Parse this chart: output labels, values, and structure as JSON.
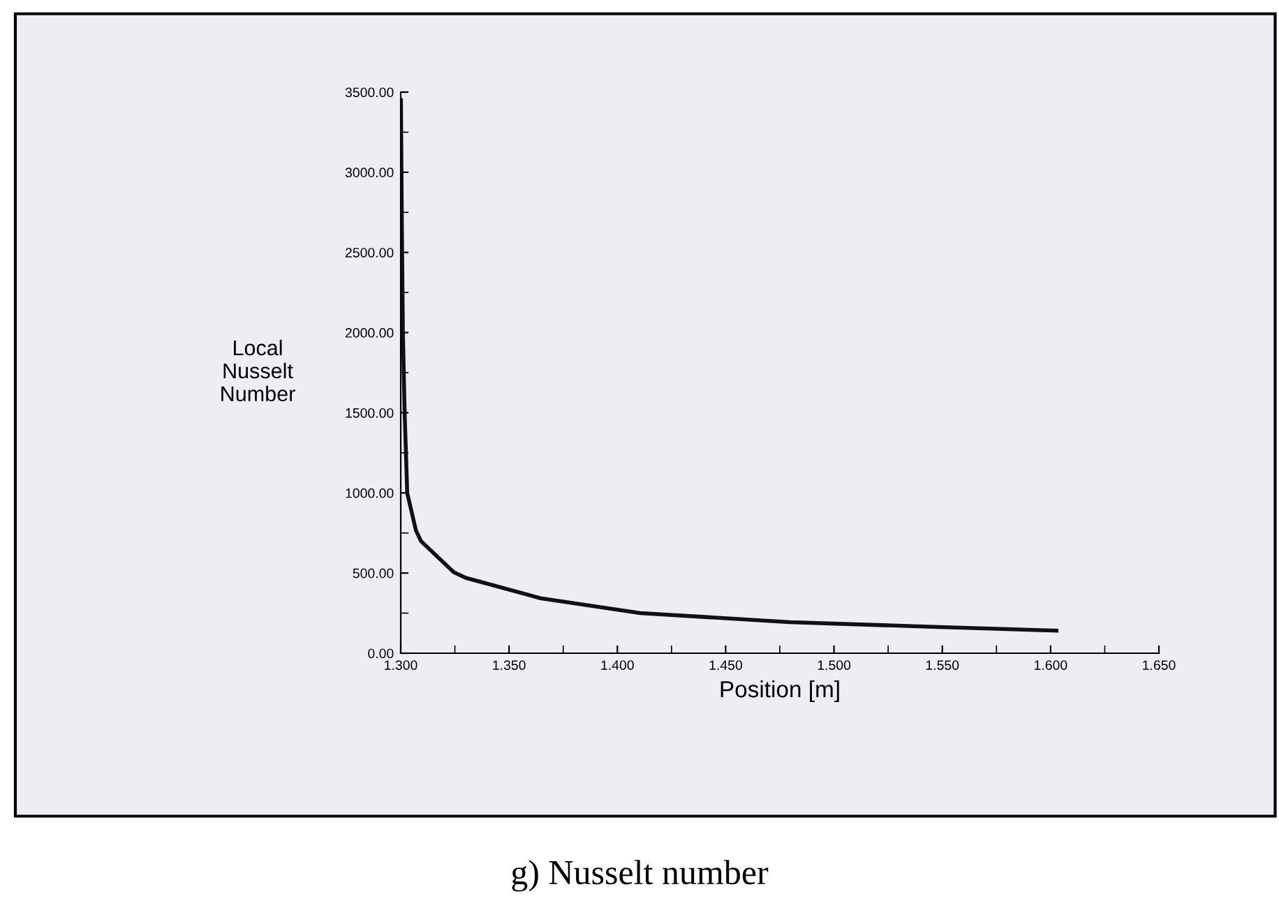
{
  "chart_data": {
    "type": "line",
    "xlabel": "Position [m]",
    "ylabel": "Local\nNusselt\nNumber",
    "annotations": [
      "g) Nusselt number"
    ],
    "x": [
      1.3001,
      1.3005,
      1.301,
      1.3018,
      1.303,
      1.307,
      1.3093,
      1.3245,
      1.33,
      1.3645,
      1.4105,
      1.4795,
      1.5487,
      1.6027
    ],
    "series": [
      {
        "color": "#111111",
        "values": [
          3450,
          2700,
          2000,
          1500,
          1000,
          767,
          700,
          505,
          470,
          343,
          250,
          194,
          163,
          141
        ]
      }
    ],
    "xlim": [
      1.3,
      1.65
    ],
    "xticks": [
      {
        "value": 1.3,
        "label": "1.300"
      },
      {
        "value": 1.35,
        "label": "1.350"
      },
      {
        "value": 1.4,
        "label": "1.400"
      },
      {
        "value": 1.45,
        "label": "1.450"
      },
      {
        "value": 1.5,
        "label": "1.500"
      },
      {
        "value": 1.55,
        "label": "1.550"
      },
      {
        "value": 1.6,
        "label": "1.600"
      },
      {
        "value": 1.65,
        "label": "1.650"
      }
    ],
    "ylim": [
      0,
      3500
    ],
    "yticks": [
      {
        "value": 0,
        "label": "0.00"
      },
      {
        "value": 500,
        "label": "500.00"
      },
      {
        "value": 1000,
        "label": "1000.00"
      },
      {
        "value": 1500,
        "label": "1500.00"
      },
      {
        "value": 2000,
        "label": "2000.00"
      },
      {
        "value": 2500,
        "label": "2500.00"
      },
      {
        "value": 3000,
        "label": "3000.00"
      },
      {
        "value": 3500,
        "label": "3500.00"
      }
    ],
    "grid": false,
    "legend": false,
    "marker": "none",
    "line_style": "solid"
  }
}
